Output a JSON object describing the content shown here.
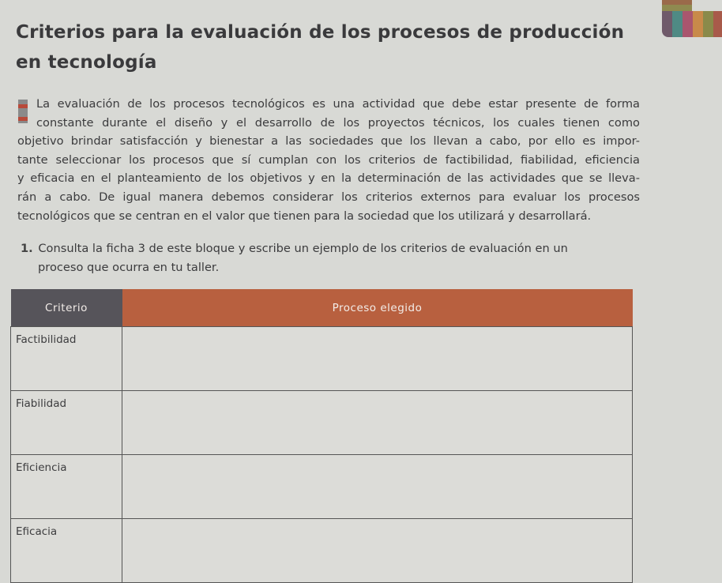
{
  "title": {
    "line1": "Criterios para la evaluación de los procesos de producción",
    "line2": "en tecnología"
  },
  "paragraph": [
    "La evaluación de los procesos tecnológicos es una actividad que debe estar presente de forma",
    "constante durante el diseño y el desarrollo de los proyectos técnicos, los cuales tienen como",
    "objetivo brindar satisfacción y bienestar a las sociedades que los llevan a cabo, por ello es impor-",
    "tante seleccionar los procesos que sí cumplan con los criterios de factibilidad, fiabilidad, eficiencia",
    "y eficacia en el planteamiento de los objetivos y en la determinación de las actividades que se lleva-",
    "rán a cabo. De igual manera debemos considerar los criterios externos para evaluar los procesos",
    "tecnológicos que se centran en el valor que tienen para la sociedad que los utilizará y desarrollará."
  ],
  "question": {
    "number": "1.",
    "line1": "Consulta la ficha 3 de este bloque y escribe un ejemplo de los criterios de evaluación en un",
    "line2": "proceso que ocurra en tu taller."
  },
  "table": {
    "headers": [
      "Criterio",
      "Proceso elegido"
    ],
    "rows": [
      {
        "criterio": "Factibilidad",
        "proceso": ""
      },
      {
        "criterio": "Fiabilidad",
        "proceso": ""
      },
      {
        "criterio": "Eficiencia",
        "proceso": ""
      },
      {
        "criterio": "Eficacia",
        "proceso": ""
      }
    ]
  },
  "colors": {
    "header_dark": "#56545a",
    "header_accent": "#b8603f",
    "marker_red": "#b84a3a",
    "tab_strips": [
      "#6f5a6a",
      "#4f8a84",
      "#a9566e",
      "#c88a4a",
      "#8a8a4a"
    ]
  }
}
